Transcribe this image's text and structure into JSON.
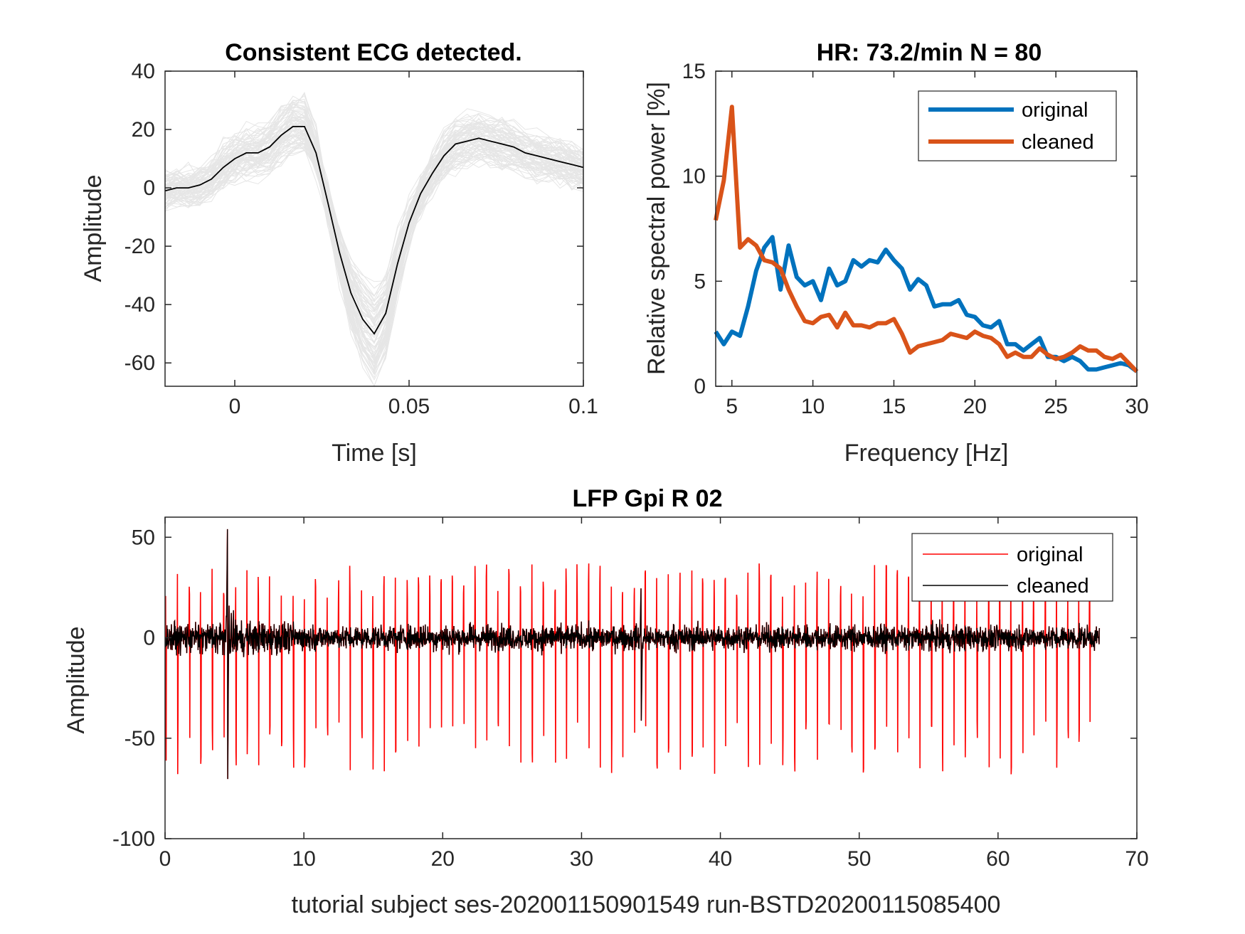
{
  "figure": {
    "xlabel_bottom": "tutorial subject ses-202001150901549 run-BSTD20200115085400"
  },
  "chart_data": [
    {
      "id": "ecg_template",
      "type": "line",
      "title": "Consistent ECG detected.",
      "xlabel": "Time [s]",
      "ylabel": "Amplitude",
      "xlim": [
        -0.02,
        0.1
      ],
      "ylim": [
        -68,
        40
      ],
      "xticks": [
        0,
        0.05,
        0.1
      ],
      "xtick_labels": [
        "0",
        "0.05",
        "0.1"
      ],
      "yticks": [
        -60,
        -40,
        -20,
        0,
        20,
        40
      ],
      "ytick_labels": [
        "-60",
        "-40",
        "-20",
        "0",
        "20",
        "40"
      ],
      "grid": false,
      "n_epochs": 80,
      "colors": {
        "average": "#000000",
        "epochs": "#e6e6e6"
      },
      "series": [
        {
          "x": [
            -0.02,
            -0.0167,
            -0.0133,
            -0.01,
            -0.0067,
            -0.0033,
            0,
            0.0033,
            0.0067,
            0.01,
            0.0133,
            0.0167,
            0.02,
            0.0233,
            0.0267,
            0.03,
            0.0333,
            0.0367,
            0.04,
            0.0433,
            0.0467,
            0.05,
            0.0533,
            0.0567,
            0.06,
            0.0633,
            0.0667,
            0.07,
            0.0733,
            0.0767,
            0.08,
            0.0833,
            0.0867,
            0.09,
            0.0933,
            0.0967,
            0.1
          ],
          "y": [
            -1,
            0,
            0,
            1,
            3,
            7,
            10,
            12,
            12,
            14,
            18,
            21,
            21,
            12,
            -5,
            -22,
            -36,
            -45,
            -50,
            -43,
            -26,
            -12,
            -2,
            5,
            11,
            15,
            16,
            17,
            16,
            15,
            14,
            12,
            11,
            10,
            9,
            8,
            7
          ]
        }
      ]
    },
    {
      "id": "spectrum",
      "type": "line",
      "title": "HR: 73.2/min  N = 80",
      "xlabel": "Frequency [Hz]",
      "ylabel": "Relative spectral power [%]",
      "xlim": [
        4,
        30
      ],
      "ylim": [
        0,
        15
      ],
      "xticks": [
        5,
        10,
        15,
        20,
        25,
        30
      ],
      "xtick_labels": [
        "5",
        "10",
        "15",
        "20",
        "25",
        "30"
      ],
      "yticks": [
        0,
        5,
        10,
        15
      ],
      "ytick_labels": [
        "0",
        "5",
        "10",
        "15"
      ],
      "grid": false,
      "legend_position": "top-right",
      "x": [
        4,
        4.5,
        5,
        5.5,
        6,
        6.5,
        7,
        7.5,
        8,
        8.5,
        9,
        9.5,
        10,
        10.5,
        11,
        11.5,
        12,
        12.5,
        13,
        13.5,
        14,
        14.5,
        15,
        15.5,
        16,
        16.5,
        17,
        17.5,
        18,
        18.5,
        19,
        19.5,
        20,
        20.5,
        21,
        21.5,
        22,
        22.5,
        23,
        23.5,
        24,
        24.5,
        25,
        25.5,
        26,
        26.5,
        27,
        27.5,
        28,
        28.5,
        29,
        29.5,
        30
      ],
      "series": [
        {
          "name": "original",
          "color": "#0072bd",
          "values": [
            2.6,
            2.0,
            2.6,
            2.4,
            3.8,
            5.5,
            6.6,
            7.1,
            4.6,
            6.7,
            5.2,
            4.8,
            5.0,
            4.1,
            5.6,
            4.8,
            5.0,
            6.0,
            5.7,
            6.0,
            5.9,
            6.5,
            6.0,
            5.6,
            4.6,
            5.1,
            4.8,
            3.8,
            3.9,
            3.9,
            4.1,
            3.4,
            3.3,
            2.9,
            2.8,
            3.1,
            2.0,
            2.0,
            1.7,
            2.0,
            2.3,
            1.4,
            1.4,
            1.2,
            1.4,
            1.2,
            0.8,
            0.8,
            0.9,
            1.0,
            1.1,
            1.0,
            0.7
          ]
        },
        {
          "name": "cleaned",
          "color": "#d95319",
          "values": [
            7.9,
            9.8,
            13.3,
            6.6,
            7.0,
            6.7,
            6.0,
            5.9,
            5.6,
            4.6,
            3.8,
            3.1,
            3.0,
            3.3,
            3.4,
            2.8,
            3.5,
            2.9,
            2.9,
            2.8,
            3.0,
            3.0,
            3.2,
            2.5,
            1.6,
            1.9,
            2.0,
            2.1,
            2.2,
            2.5,
            2.4,
            2.3,
            2.6,
            2.4,
            2.3,
            2.0,
            1.4,
            1.6,
            1.4,
            1.4,
            1.8,
            1.5,
            1.3,
            1.4,
            1.6,
            1.9,
            1.7,
            1.7,
            1.4,
            1.3,
            1.5,
            1.1,
            0.7
          ]
        }
      ]
    },
    {
      "id": "lfp_trace",
      "type": "line",
      "title": "LFP Gpi R 02",
      "ylabel": "Amplitude",
      "xlim": [
        0,
        70
      ],
      "ylim": [
        -100,
        60
      ],
      "xticks": [
        0,
        10,
        20,
        30,
        40,
        50,
        60,
        70
      ],
      "xtick_labels": [
        "0",
        "10",
        "20",
        "30",
        "40",
        "50",
        "60",
        "70"
      ],
      "yticks": [
        -100,
        -50,
        0,
        50
      ],
      "ytick_labels": [
        "-100",
        "-50",
        "0",
        "50"
      ],
      "grid": false,
      "legend_position": "top-right",
      "duration": 67.3,
      "noise_amplitude": 8,
      "heartbeat_rate_per_min": 73.2,
      "artifacts": [
        {
          "t": 4.5,
          "min": -84,
          "max": 59
        },
        {
          "t": 34.3,
          "min": -43,
          "max": 31
        }
      ],
      "series": [
        {
          "name": "original",
          "color": "#ff0000",
          "spike_min": -68,
          "spike_max": 37
        },
        {
          "name": "cleaned",
          "color": "#000000"
        }
      ]
    }
  ]
}
